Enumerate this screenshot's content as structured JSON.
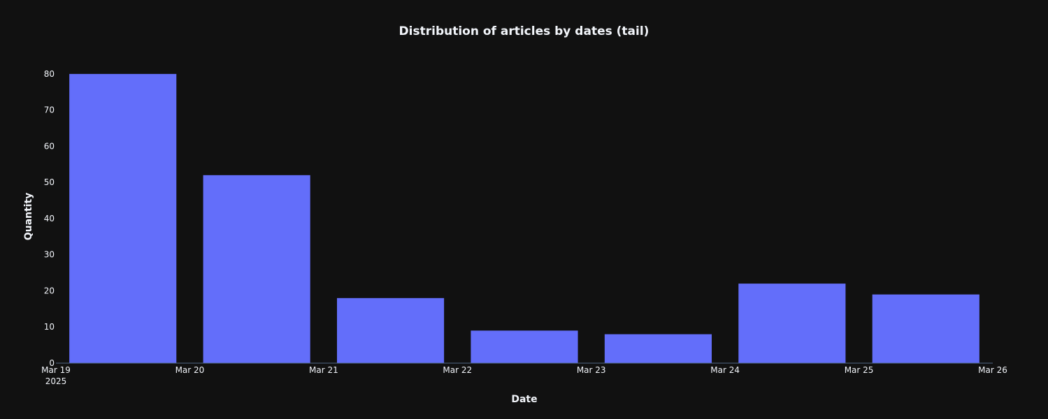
{
  "chart_data": {
    "type": "bar",
    "title": "Distribution of articles by dates (tail)",
    "xlabel": "Date",
    "ylabel": "Quantity",
    "x_ticks": [
      "Mar 19",
      "Mar 20",
      "Mar 21",
      "Mar 22",
      "Mar 23",
      "Mar 24",
      "Mar 25",
      "Mar 26"
    ],
    "x_tick_year": "2025",
    "y_ticks": [
      "0",
      "10",
      "20",
      "30",
      "40",
      "50",
      "60",
      "70",
      "80"
    ],
    "ylim": [
      0,
      85
    ],
    "xlim": [
      "2025-03-19",
      "2025-03-26"
    ],
    "grid": false,
    "colors": {
      "bar": "#636efa",
      "background": "#111111",
      "text": "#f2f5fa",
      "axis_line": "#506784"
    },
    "bars": [
      {
        "start": "2025-03-19",
        "end": "2025-03-20",
        "value": 80
      },
      {
        "start": "2025-03-20",
        "end": "2025-03-21",
        "value": 52
      },
      {
        "start": "2025-03-21",
        "end": "2025-03-22",
        "value": 18
      },
      {
        "start": "2025-03-22",
        "end": "2025-03-23",
        "value": 9
      },
      {
        "start": "2025-03-23",
        "end": "2025-03-24",
        "value": 8
      },
      {
        "start": "2025-03-24",
        "end": "2025-03-25",
        "value": 22
      },
      {
        "start": "2025-03-25",
        "end": "2025-03-26",
        "value": 19
      }
    ]
  }
}
